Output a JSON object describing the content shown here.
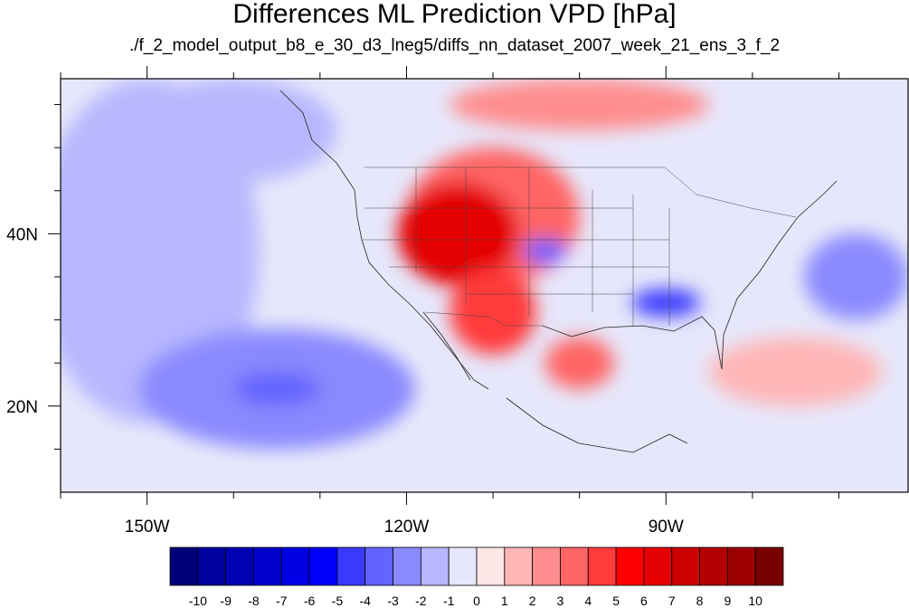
{
  "title": "Differences ML Prediction VPD [hPa]",
  "subtitle": "./f_2_model_output_b8_e_30_d3_lneg5/diffs_nn_dataset_2007_week_21_ens_3_f_2",
  "map": {
    "lon_range": [
      -160,
      -62
    ],
    "lat_range": [
      10,
      58
    ],
    "lon_major": [
      -150,
      -120,
      -90
    ],
    "lon_labels": [
      "150W",
      "120W",
      "90W"
    ],
    "lat_major": [
      20,
      40
    ],
    "lat_labels": [
      "20N",
      "40N"
    ],
    "lon_minor": [
      -160,
      -140,
      -130,
      -110,
      -100,
      -80,
      -70
    ],
    "lat_minor": [
      15,
      25,
      30,
      35,
      45,
      50,
      55
    ]
  },
  "colorbar": {
    "labels": [
      "-10",
      "-9",
      "-8",
      "-7",
      "-6",
      "-5",
      "-4",
      "-3",
      "-2",
      "-1",
      "0",
      "1",
      "2",
      "3",
      "4",
      "5",
      "6",
      "7",
      "8",
      "9",
      "10"
    ],
    "colors": [
      "#00007a",
      "#00009c",
      "#0000b4",
      "#0000cc",
      "#0000e4",
      "#0000ff",
      "#3a3aff",
      "#6363ff",
      "#8a8aff",
      "#b7b7ff",
      "#e7e7fb",
      "#fde6e6",
      "#ffb6b6",
      "#ff8d8d",
      "#ff6565",
      "#ff3b3b",
      "#ff0000",
      "#e40000",
      "#cc0000",
      "#b40000",
      "#9c0000",
      "#7a0000"
    ]
  },
  "regions": [
    {
      "name": "pacific-west-negative",
      "color": "#b7b7ff",
      "lon": -150,
      "lat": 38,
      "rx": 13,
      "ry": 20
    },
    {
      "name": "pacific-south-negative",
      "color": "#8a8aff",
      "lon": -135,
      "lat": 22,
      "rx": 16,
      "ry": 7
    },
    {
      "name": "pacific-south-core",
      "color": "#6363ff",
      "lon": -135,
      "lat": 22,
      "rx": 5,
      "ry": 2
    },
    {
      "name": "pacific-north-negative",
      "color": "#b7b7ff",
      "lon": -140,
      "lat": 52,
      "rx": 12,
      "ry": 6
    },
    {
      "name": "west-us-positive",
      "color": "#ff6565",
      "lon": -110,
      "lat": 42,
      "rx": 10,
      "ry": 8
    },
    {
      "name": "west-us-core",
      "color": "#e40000",
      "lon": -114,
      "lat": 40,
      "rx": 7,
      "ry": 6
    },
    {
      "name": "southwest-positive",
      "color": "#ff3b3b",
      "lon": -110,
      "lat": 31,
      "rx": 5,
      "ry": 5
    },
    {
      "name": "mexico-positive",
      "color": "#ff6565",
      "lon": -100,
      "lat": 25,
      "rx": 4,
      "ry": 3
    },
    {
      "name": "gulf-coast-negative",
      "color": "#3a3aff",
      "lon": -90,
      "lat": 32,
      "rx": 4,
      "ry": 1.6
    },
    {
      "name": "central-plains-negative",
      "color": "#6363ff",
      "lon": -104,
      "lat": 38,
      "rx": 2.5,
      "ry": 1.5
    },
    {
      "name": "canada-positive",
      "color": "#ff8d8d",
      "lon": -100,
      "lat": 55,
      "rx": 15,
      "ry": 3
    },
    {
      "name": "atlantic-negative",
      "color": "#8a8aff",
      "lon": -68,
      "lat": 35,
      "rx": 6,
      "ry": 5
    },
    {
      "name": "caribbean-positive",
      "color": "#ffb6b6",
      "lon": -75,
      "lat": 24,
      "rx": 10,
      "ry": 4
    }
  ]
}
